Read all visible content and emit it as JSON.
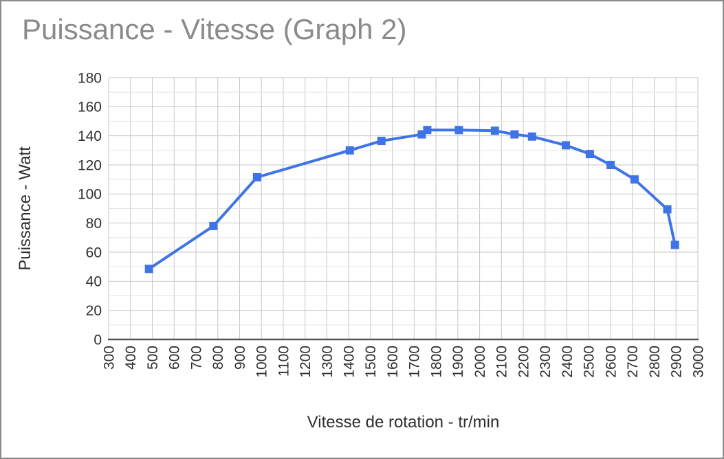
{
  "chart_data": {
    "type": "line",
    "title": "Puissance - Vitesse (Graph 2)",
    "xlabel": "Vitesse de rotation - tr/min",
    "ylabel": "Puissance - Watt",
    "series": [
      {
        "name": "Puissance",
        "x": [
          485,
          780,
          980,
          1405,
          1550,
          1735,
          1760,
          1905,
          2070,
          2160,
          2240,
          2395,
          2505,
          2600,
          2710,
          2860,
          2895
        ],
        "y": [
          48.5,
          78,
          111.5,
          130,
          136.5,
          141,
          144,
          144,
          143.5,
          141,
          139.5,
          133.5,
          127.5,
          120,
          110,
          89.5,
          65
        ]
      }
    ],
    "xlim": [
      300,
      3000
    ],
    "ylim": [
      0,
      180
    ],
    "x_tick_step": 100,
    "y_label_step": 20,
    "y_grid_step": 10,
    "x_tick_labels": [
      "300",
      "400",
      "500",
      "600",
      "700",
      "800",
      "900",
      "1000",
      "1100",
      "1200",
      "1300",
      "1400",
      "1500",
      "1600",
      "1700",
      "1800",
      "1900",
      "2000",
      "2100",
      "2200",
      "2300",
      "2400",
      "2500",
      "2600",
      "2700",
      "2800",
      "2900",
      "3000"
    ],
    "y_tick_labels": [
      "0",
      "20",
      "40",
      "60",
      "80",
      "100",
      "120",
      "140",
      "160",
      "180"
    ],
    "grid": true,
    "legend": false,
    "marker": "square",
    "x_tick_labels_rotated": true
  },
  "colors": {
    "series": "#3e74e8",
    "title": "#8a8a8a",
    "axis_text": "#2e2e2e",
    "grid_major": "#c6c6c6",
    "grid_minor": "#e4e4e4",
    "axis_line": "#565656",
    "frame_border": "#8a8a8a",
    "background": "#ffffff"
  }
}
